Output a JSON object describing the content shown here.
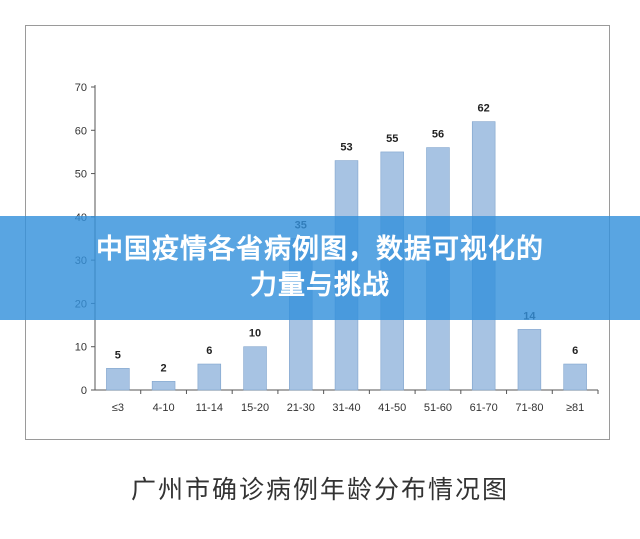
{
  "banner": {
    "line1": "中国疫情各省病例图，数据可视化的",
    "line2": "力量与挑战"
  },
  "caption": "广州市确诊病例年龄分布情况图",
  "colors": {
    "bar": "#a7c3e3",
    "bar_edge": "#7fa3cc",
    "banner": "#3491dc",
    "axis": "#555555"
  },
  "chart_data": {
    "type": "bar",
    "categories": [
      "≤3",
      "4-10",
      "11-14",
      "15-20",
      "21-30",
      "31-40",
      "41-50",
      "51-60",
      "61-70",
      "71-80",
      "≥81"
    ],
    "values": [
      5,
      2,
      6,
      10,
      35,
      53,
      55,
      56,
      62,
      14,
      6
    ],
    "title": "",
    "xlabel": "",
    "ylabel": "",
    "ylim": [
      0,
      70
    ],
    "yticks": [
      0,
      10,
      20,
      30,
      40,
      50,
      60,
      70
    ],
    "grid": false,
    "legend": "none"
  }
}
